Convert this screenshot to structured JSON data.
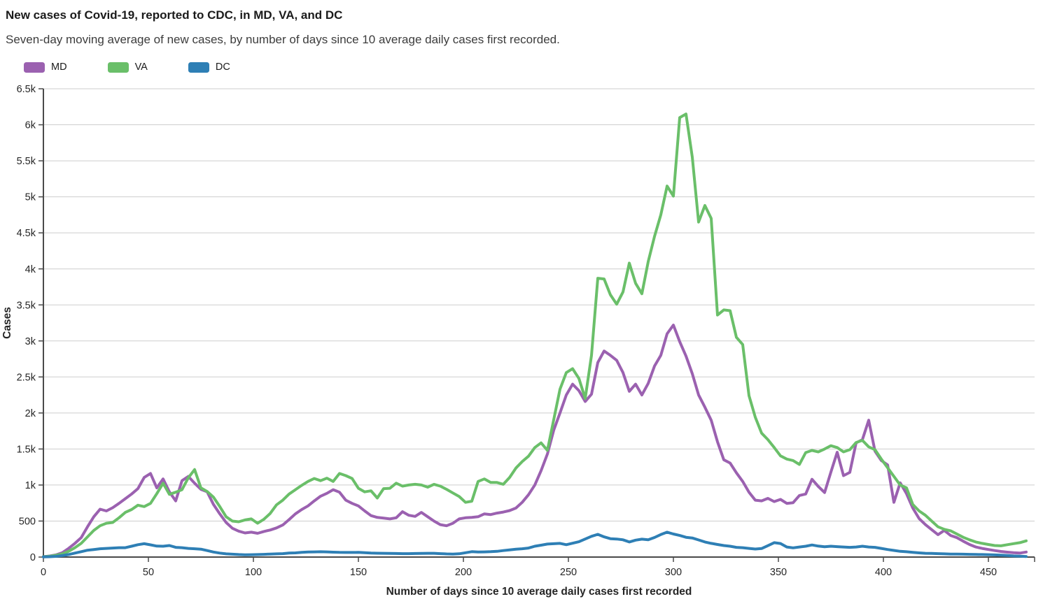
{
  "header": {
    "title": "New cases of Covid-19, reported to CDC, in MD, VA, and DC",
    "subtitle": "Seven-day moving average of new cases, by number of days since 10 average daily cases first recorded."
  },
  "legend": {
    "position": "top-left",
    "items": [
      {
        "label": "MD",
        "color": "#9b61b0"
      },
      {
        "label": "VA",
        "color": "#6abf69"
      },
      {
        "label": "DC",
        "color": "#2e7fb5"
      }
    ]
  },
  "chart_data": {
    "type": "line",
    "title": "New cases of Covid-19, reported to CDC, in MD, VA, and DC",
    "subtitle": "Seven-day moving average of new cases, by number of days since 10 average daily cases first recorded.",
    "xlabel": "Number of days since 10 average daily cases first recorded",
    "ylabel": "Cases",
    "xlim": [
      0,
      472
    ],
    "ylim": [
      0,
      6500
    ],
    "grid": true,
    "legend_position": "top-left",
    "x_ticks": [
      0,
      50,
      100,
      150,
      200,
      250,
      300,
      350,
      400,
      450
    ],
    "y_ticks": [
      0,
      500,
      1000,
      1500,
      2000,
      2500,
      3000,
      3500,
      4000,
      4500,
      5000,
      5500,
      6000,
      6500
    ],
    "y_tick_labels": [
      "0",
      "500",
      "1k",
      "1.5k",
      "2k",
      "2.5k",
      "3k",
      "3.5k",
      "4k",
      "4.5k",
      "5k",
      "5.5k",
      "6k",
      "6.5k"
    ],
    "colors": {
      "grid": "#cdcdcd",
      "axis": "#4a4a4a"
    },
    "x": [
      0,
      3,
      6,
      9,
      12,
      15,
      18,
      21,
      24,
      27,
      30,
      33,
      36,
      39,
      42,
      45,
      48,
      51,
      54,
      57,
      60,
      63,
      66,
      69,
      72,
      75,
      78,
      81,
      84,
      87,
      90,
      93,
      96,
      99,
      102,
      105,
      108,
      111,
      114,
      117,
      120,
      123,
      126,
      129,
      132,
      135,
      138,
      141,
      144,
      147,
      150,
      153,
      156,
      159,
      162,
      165,
      168,
      171,
      174,
      177,
      180,
      183,
      186,
      189,
      192,
      195,
      198,
      201,
      204,
      207,
      210,
      213,
      216,
      219,
      222,
      225,
      228,
      231,
      234,
      237,
      240,
      243,
      246,
      249,
      252,
      255,
      258,
      261,
      264,
      267,
      270,
      273,
      276,
      279,
      282,
      285,
      288,
      291,
      294,
      297,
      300,
      303,
      306,
      309,
      312,
      315,
      318,
      321,
      324,
      327,
      330,
      333,
      336,
      339,
      342,
      345,
      348,
      351,
      354,
      357,
      360,
      363,
      366,
      369,
      372,
      375,
      378,
      381,
      384,
      387,
      390,
      393,
      396,
      399,
      402,
      405,
      408,
      411,
      414,
      417,
      420,
      423,
      426,
      429,
      432,
      435,
      438,
      441,
      444,
      447,
      450,
      453,
      456,
      459,
      462,
      465,
      468
    ],
    "series": [
      {
        "name": "MD",
        "color": "#9b61b0",
        "values": [
          5,
          15,
          30,
          60,
          120,
          190,
          270,
          420,
          560,
          665,
          640,
          685,
          745,
          810,
          875,
          950,
          1105,
          1160,
          960,
          1085,
          905,
          780,
          1060,
          1120,
          1025,
          940,
          905,
          730,
          600,
          480,
          400,
          360,
          335,
          345,
          330,
          355,
          375,
          405,
          445,
          520,
          600,
          660,
          710,
          780,
          845,
          885,
          935,
          900,
          790,
          745,
          710,
          640,
          575,
          550,
          540,
          530,
          545,
          630,
          580,
          565,
          620,
          560,
          500,
          450,
          435,
          470,
          530,
          545,
          550,
          560,
          600,
          590,
          610,
          625,
          645,
          680,
          760,
          865,
          1000,
          1200,
          1430,
          1760,
          2000,
          2250,
          2400,
          2310,
          2160,
          2260,
          2700,
          2860,
          2800,
          2730,
          2560,
          2300,
          2400,
          2250,
          2410,
          2650,
          2800,
          3100,
          3220,
          2990,
          2790,
          2545,
          2250,
          2080,
          1900,
          1600,
          1350,
          1305,
          1170,
          1050,
          900,
          790,
          780,
          815,
          770,
          800,
          745,
          755,
          855,
          875,
          1080,
          980,
          895,
          1180,
          1455,
          1130,
          1175,
          1585,
          1630,
          1900,
          1470,
          1340,
          1280,
          760,
          1030,
          880,
          680,
          535,
          450,
          380,
          310,
          370,
          300,
          270,
          220,
          175,
          140,
          120,
          105,
          90,
          78,
          68,
          60,
          55,
          70
        ]
      },
      {
        "name": "VA",
        "color": "#6abf69",
        "values": [
          5,
          12,
          25,
          45,
          80,
          130,
          190,
          280,
          370,
          435,
          470,
          480,
          545,
          620,
          660,
          720,
          700,
          745,
          880,
          1025,
          870,
          900,
          935,
          1100,
          1215,
          960,
          910,
          830,
          700,
          560,
          500,
          490,
          515,
          530,
          470,
          525,
          605,
          725,
          790,
          875,
          935,
          995,
          1050,
          1090,
          1060,
          1095,
          1050,
          1160,
          1130,
          1090,
          955,
          905,
          920,
          820,
          950,
          955,
          1025,
          985,
          1000,
          1010,
          1000,
          970,
          1010,
          985,
          940,
          890,
          840,
          760,
          775,
          1050,
          1085,
          1035,
          1035,
          1010,
          1105,
          1235,
          1325,
          1400,
          1520,
          1585,
          1480,
          1905,
          2330,
          2560,
          2615,
          2480,
          2200,
          2800,
          3870,
          3860,
          3640,
          3510,
          3680,
          4080,
          3800,
          3655,
          4100,
          4450,
          4750,
          5150,
          5010,
          6100,
          6150,
          5550,
          4650,
          4880,
          4700,
          3360,
          3430,
          3420,
          3050,
          2950,
          2240,
          1940,
          1720,
          1630,
          1520,
          1405,
          1360,
          1340,
          1285,
          1450,
          1480,
          1460,
          1500,
          1545,
          1520,
          1460,
          1490,
          1590,
          1620,
          1530,
          1490,
          1360,
          1240,
          1120,
          1000,
          960,
          730,
          640,
          580,
          500,
          420,
          385,
          365,
          320,
          275,
          240,
          210,
          190,
          175,
          160,
          156,
          172,
          186,
          200,
          225
        ]
      },
      {
        "name": "DC",
        "color": "#2e7fb5",
        "values": [
          2,
          5,
          10,
          20,
          35,
          55,
          75,
          95,
          105,
          115,
          120,
          125,
          130,
          130,
          150,
          172,
          185,
          170,
          152,
          150,
          160,
          135,
          130,
          120,
          115,
          110,
          90,
          70,
          55,
          45,
          40,
          35,
          32,
          33,
          35,
          38,
          42,
          45,
          48,
          55,
          58,
          65,
          70,
          72,
          74,
          72,
          68,
          65,
          64,
          64,
          65,
          60,
          55,
          53,
          52,
          50,
          49,
          48,
          48,
          49,
          50,
          52,
          52,
          48,
          44,
          42,
          46,
          60,
          75,
          70,
          72,
          75,
          80,
          90,
          100,
          110,
          115,
          125,
          150,
          165,
          180,
          185,
          190,
          172,
          192,
          212,
          250,
          288,
          315,
          280,
          255,
          250,
          240,
          210,
          235,
          248,
          240,
          272,
          312,
          345,
          320,
          300,
          275,
          265,
          238,
          210,
          190,
          175,
          160,
          150,
          135,
          130,
          120,
          112,
          118,
          158,
          200,
          188,
          140,
          128,
          140,
          150,
          168,
          152,
          143,
          150,
          145,
          140,
          135,
          140,
          150,
          140,
          135,
          120,
          105,
          92,
          80,
          74,
          66,
          58,
          52,
          50,
          48,
          45,
          42,
          42,
          40,
          38,
          36,
          35,
          33,
          30,
          26,
          22,
          16,
          12,
          8
        ]
      }
    ]
  }
}
